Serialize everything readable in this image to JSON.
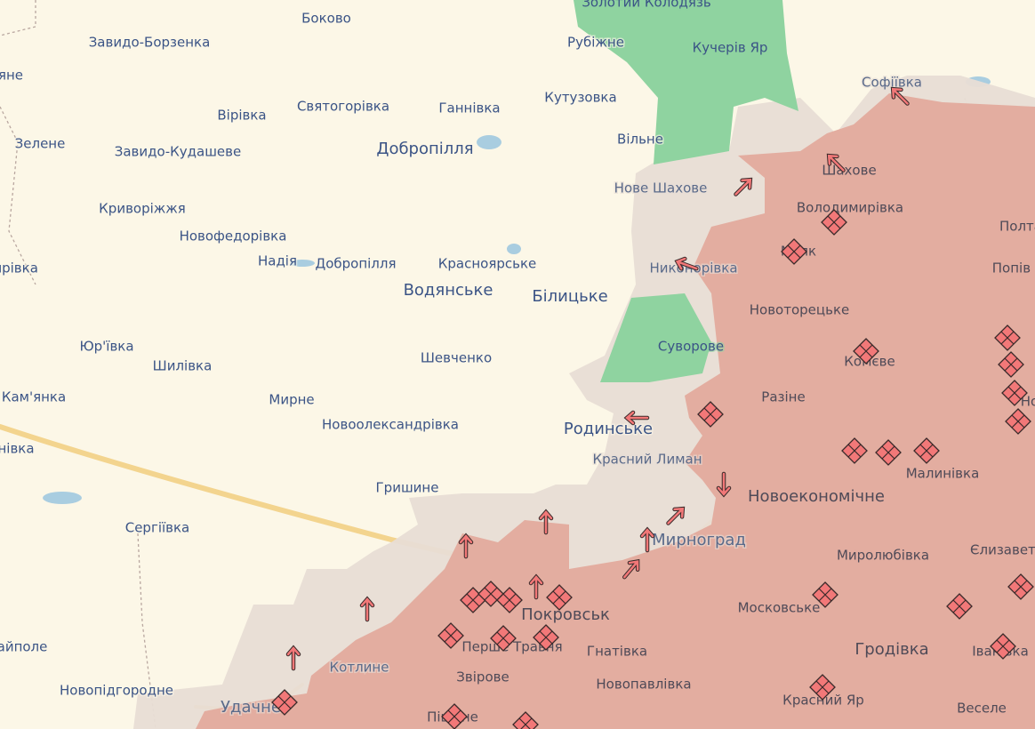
{
  "map": {
    "colors": {
      "background": "#fcf7e7",
      "liberated": "#8fd3a0",
      "contested": "#e8ddd5",
      "occupied": "#e3ada0",
      "road": "#f3d48e",
      "marker": "#f27878"
    },
    "legend_markers": [
      "attack-arrow-icon",
      "assault-diamond-icon"
    ],
    "labels": [
      "Золотий Колодязь",
      "Боково",
      "Завидо-Борзенка",
      "Рубіжне",
      "Кучерів Яр",
      "Софіївка",
      "яне",
      "Вірівка",
      "Святогорівка",
      "Ганнівка",
      "Кутузовка",
      "Зелене",
      "Завидо-Кудашеве",
      "Добропілля",
      "Вільне",
      "Нове Шахове",
      "Шахове",
      "Криворіжжя",
      "Володимирівка",
      "Новофедорівка",
      "Полта",
      "Надія",
      "Добропілля",
      "Красноярське",
      "Маяк",
      "Попів Я",
      "ярівка",
      "Водянське",
      "Білицьке",
      "Никонорівка",
      "Новоторецьке",
      "Юр'ївка",
      "Суворове",
      "Шилівка",
      "Шевченко",
      "Комєве",
      "Кам'янка",
      "Мирне",
      "Разіне",
      "Новоолександрівка",
      "Родинське",
      "нівка",
      "Красний Лиман",
      "Малинівка",
      "Гришине",
      "Новоекономічне",
      "Сергіївка",
      "Мирноград",
      "Миролюбівка",
      "Єлизаветі",
      "Покровськ",
      "Московське",
      "айполе",
      "Перше Травня",
      "Гнатівка",
      "Котлине",
      "Гродівка",
      "Іванівка",
      "Звірове",
      "Новопавлівка",
      "Новопідгородне",
      "Удачне",
      "Красний Яр",
      "Веселе",
      "Піщане",
      "Но"
    ]
  }
}
